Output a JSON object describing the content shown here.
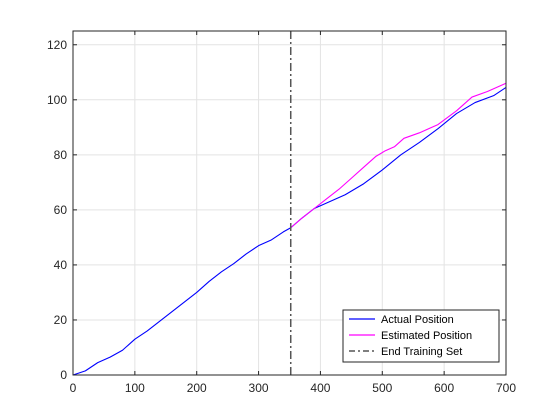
{
  "chart_data": {
    "type": "line",
    "title": "",
    "xlabel": "",
    "ylabel": "",
    "xlim": [
      0,
      700
    ],
    "ylim": [
      0,
      125
    ],
    "xticks": [
      0,
      100,
      200,
      300,
      400,
      500,
      600,
      700
    ],
    "yticks": [
      0,
      20,
      40,
      60,
      80,
      100,
      120
    ],
    "grid": true,
    "legend_position": "bottom-right",
    "series": [
      {
        "name": "Actual Position",
        "color": "#0000ff",
        "style": "solid",
        "points": [
          [
            0,
            0
          ],
          [
            20,
            1.5
          ],
          [
            40,
            4.5
          ],
          [
            60,
            6.5
          ],
          [
            80,
            9
          ],
          [
            100,
            13
          ],
          [
            120,
            16
          ],
          [
            140,
            19.5
          ],
          [
            160,
            23
          ],
          [
            180,
            26.5
          ],
          [
            200,
            30
          ],
          [
            220,
            34
          ],
          [
            240,
            37.5
          ],
          [
            260,
            40.5
          ],
          [
            280,
            44
          ],
          [
            300,
            47
          ],
          [
            320,
            49
          ],
          [
            340,
            52
          ],
          [
            352,
            53.5
          ],
          [
            370,
            57
          ],
          [
            390,
            60.5
          ],
          [
            410,
            62.5
          ],
          [
            440,
            65.5
          ],
          [
            470,
            69.5
          ],
          [
            500,
            74.5
          ],
          [
            530,
            80
          ],
          [
            560,
            84.5
          ],
          [
            590,
            89.5
          ],
          [
            620,
            95
          ],
          [
            650,
            99
          ],
          [
            680,
            101.5
          ],
          [
            700,
            104.5
          ]
        ]
      },
      {
        "name": "Estimated Position",
        "color": "#ff00ff",
        "style": "solid",
        "points": [
          [
            352,
            53.5
          ],
          [
            370,
            57
          ],
          [
            390,
            60.5
          ],
          [
            410,
            64
          ],
          [
            430,
            67.5
          ],
          [
            450,
            71.5
          ],
          [
            470,
            75.5
          ],
          [
            490,
            79.5
          ],
          [
            505,
            81.5
          ],
          [
            520,
            83
          ],
          [
            535,
            86
          ],
          [
            560,
            88
          ],
          [
            590,
            91
          ],
          [
            620,
            96
          ],
          [
            645,
            101
          ],
          [
            670,
            103
          ],
          [
            700,
            106
          ]
        ]
      },
      {
        "name": "End Training Set",
        "color": "#555555",
        "style": "dash-dot",
        "vertical_x": 352
      }
    ]
  }
}
